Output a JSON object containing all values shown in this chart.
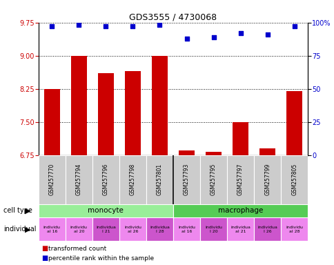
{
  "title": "GDS3555 / 4730068",
  "samples": [
    "GSM257770",
    "GSM257794",
    "GSM257796",
    "GSM257798",
    "GSM257801",
    "GSM257793",
    "GSM257795",
    "GSM257797",
    "GSM257799",
    "GSM257805"
  ],
  "bar_values": [
    8.25,
    9.0,
    8.6,
    8.65,
    9.0,
    6.85,
    6.82,
    7.5,
    6.9,
    8.2
  ],
  "scatter_values": [
    97,
    98,
    97,
    97,
    98,
    88,
    89,
    92,
    91,
    97
  ],
  "bar_color": "#cc0000",
  "scatter_color": "#0000cc",
  "ylim_left": [
    6.75,
    9.75
  ],
  "yticks_left": [
    6.75,
    7.5,
    8.25,
    9.0,
    9.75
  ],
  "ylim_right": [
    0,
    100
  ],
  "yticks_right": [
    0,
    25,
    50,
    75,
    100
  ],
  "ytick_labels_right": [
    "0",
    "25",
    "50",
    "75",
    "100%"
  ],
  "cell_types": [
    {
      "label": "monocyte",
      "start": 0,
      "end": 5,
      "color": "#99ee99"
    },
    {
      "label": "macrophage",
      "start": 5,
      "end": 10,
      "color": "#55cc55"
    }
  ],
  "individuals": [
    {
      "label": "individu\nal 16",
      "idx": 0,
      "color": "#ee88ee"
    },
    {
      "label": "individu\nal 20",
      "idx": 1,
      "color": "#ee88ee"
    },
    {
      "label": "individua\nl 21",
      "idx": 2,
      "color": "#cc55cc"
    },
    {
      "label": "individu\nal 26",
      "idx": 3,
      "color": "#ee88ee"
    },
    {
      "label": "individua\nl 28",
      "idx": 4,
      "color": "#cc55cc"
    },
    {
      "label": "individu\nal 16",
      "idx": 5,
      "color": "#ee88ee"
    },
    {
      "label": "individu\nl 20",
      "idx": 6,
      "color": "#cc55cc"
    },
    {
      "label": "individua\nal 21",
      "idx": 7,
      "color": "#ee88ee"
    },
    {
      "label": "individua\nl 26",
      "idx": 8,
      "color": "#cc55cc"
    },
    {
      "label": "individu\nal 28",
      "idx": 9,
      "color": "#ee88ee"
    }
  ],
  "legend_items": [
    {
      "label": "transformed count",
      "color": "#cc0000"
    },
    {
      "label": "percentile rank within the sample",
      "color": "#0000cc"
    }
  ],
  "background_color": "#ffffff"
}
